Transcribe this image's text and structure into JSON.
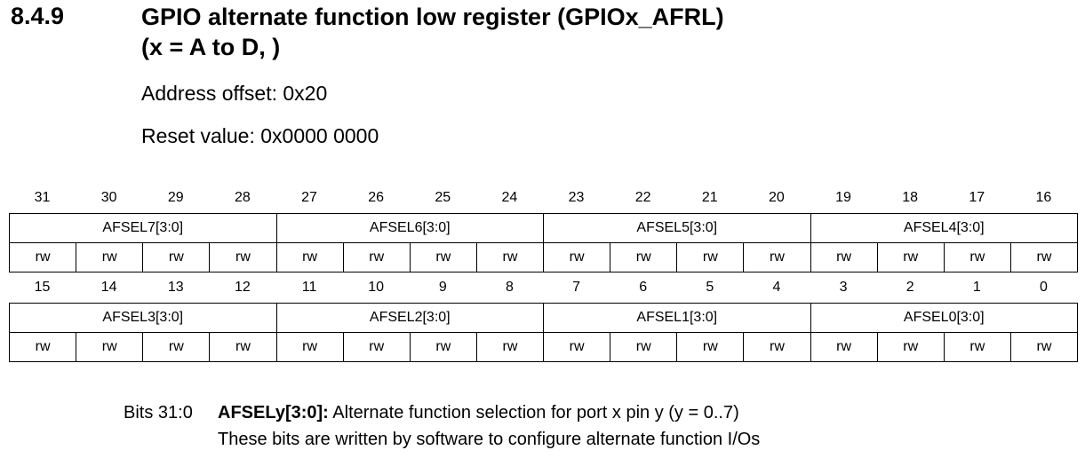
{
  "heading": {
    "number": "8.4.9",
    "title_line1": "GPIO alternate function low register (GPIOx_AFRL)",
    "title_line2": "(x = A to D, )"
  },
  "address_offset": "Address offset: 0x20",
  "reset_value": "Reset value: 0x0000 0000",
  "upper_half": {
    "bit_numbers": [
      "31",
      "30",
      "29",
      "28",
      "27",
      "26",
      "25",
      "24",
      "23",
      "22",
      "21",
      "20",
      "19",
      "18",
      "17",
      "16"
    ],
    "fields": [
      "AFSEL7[3:0]",
      "AFSEL6[3:0]",
      "AFSEL5[3:0]",
      "AFSEL4[3:0]"
    ],
    "access": [
      "rw",
      "rw",
      "rw",
      "rw",
      "rw",
      "rw",
      "rw",
      "rw",
      "rw",
      "rw",
      "rw",
      "rw",
      "rw",
      "rw",
      "rw",
      "rw"
    ]
  },
  "lower_half": {
    "bit_numbers": [
      "15",
      "14",
      "13",
      "12",
      "11",
      "10",
      "9",
      "8",
      "7",
      "6",
      "5",
      "4",
      "3",
      "2",
      "1",
      "0"
    ],
    "fields": [
      "AFSEL3[3:0]",
      "AFSEL2[3:0]",
      "AFSEL1[3:0]",
      "AFSEL0[3:0]"
    ],
    "access": [
      "rw",
      "rw",
      "rw",
      "rw",
      "rw",
      "rw",
      "rw",
      "rw",
      "rw",
      "rw",
      "rw",
      "rw",
      "rw",
      "rw",
      "rw",
      "rw"
    ]
  },
  "description": {
    "bits": "Bits 31:0",
    "field": "AFSELy[3:0]:",
    "text": " Alternate function selection for port x pin y (y = 0..7)",
    "detail": "These bits are written by software to configure alternate function I/Os"
  }
}
